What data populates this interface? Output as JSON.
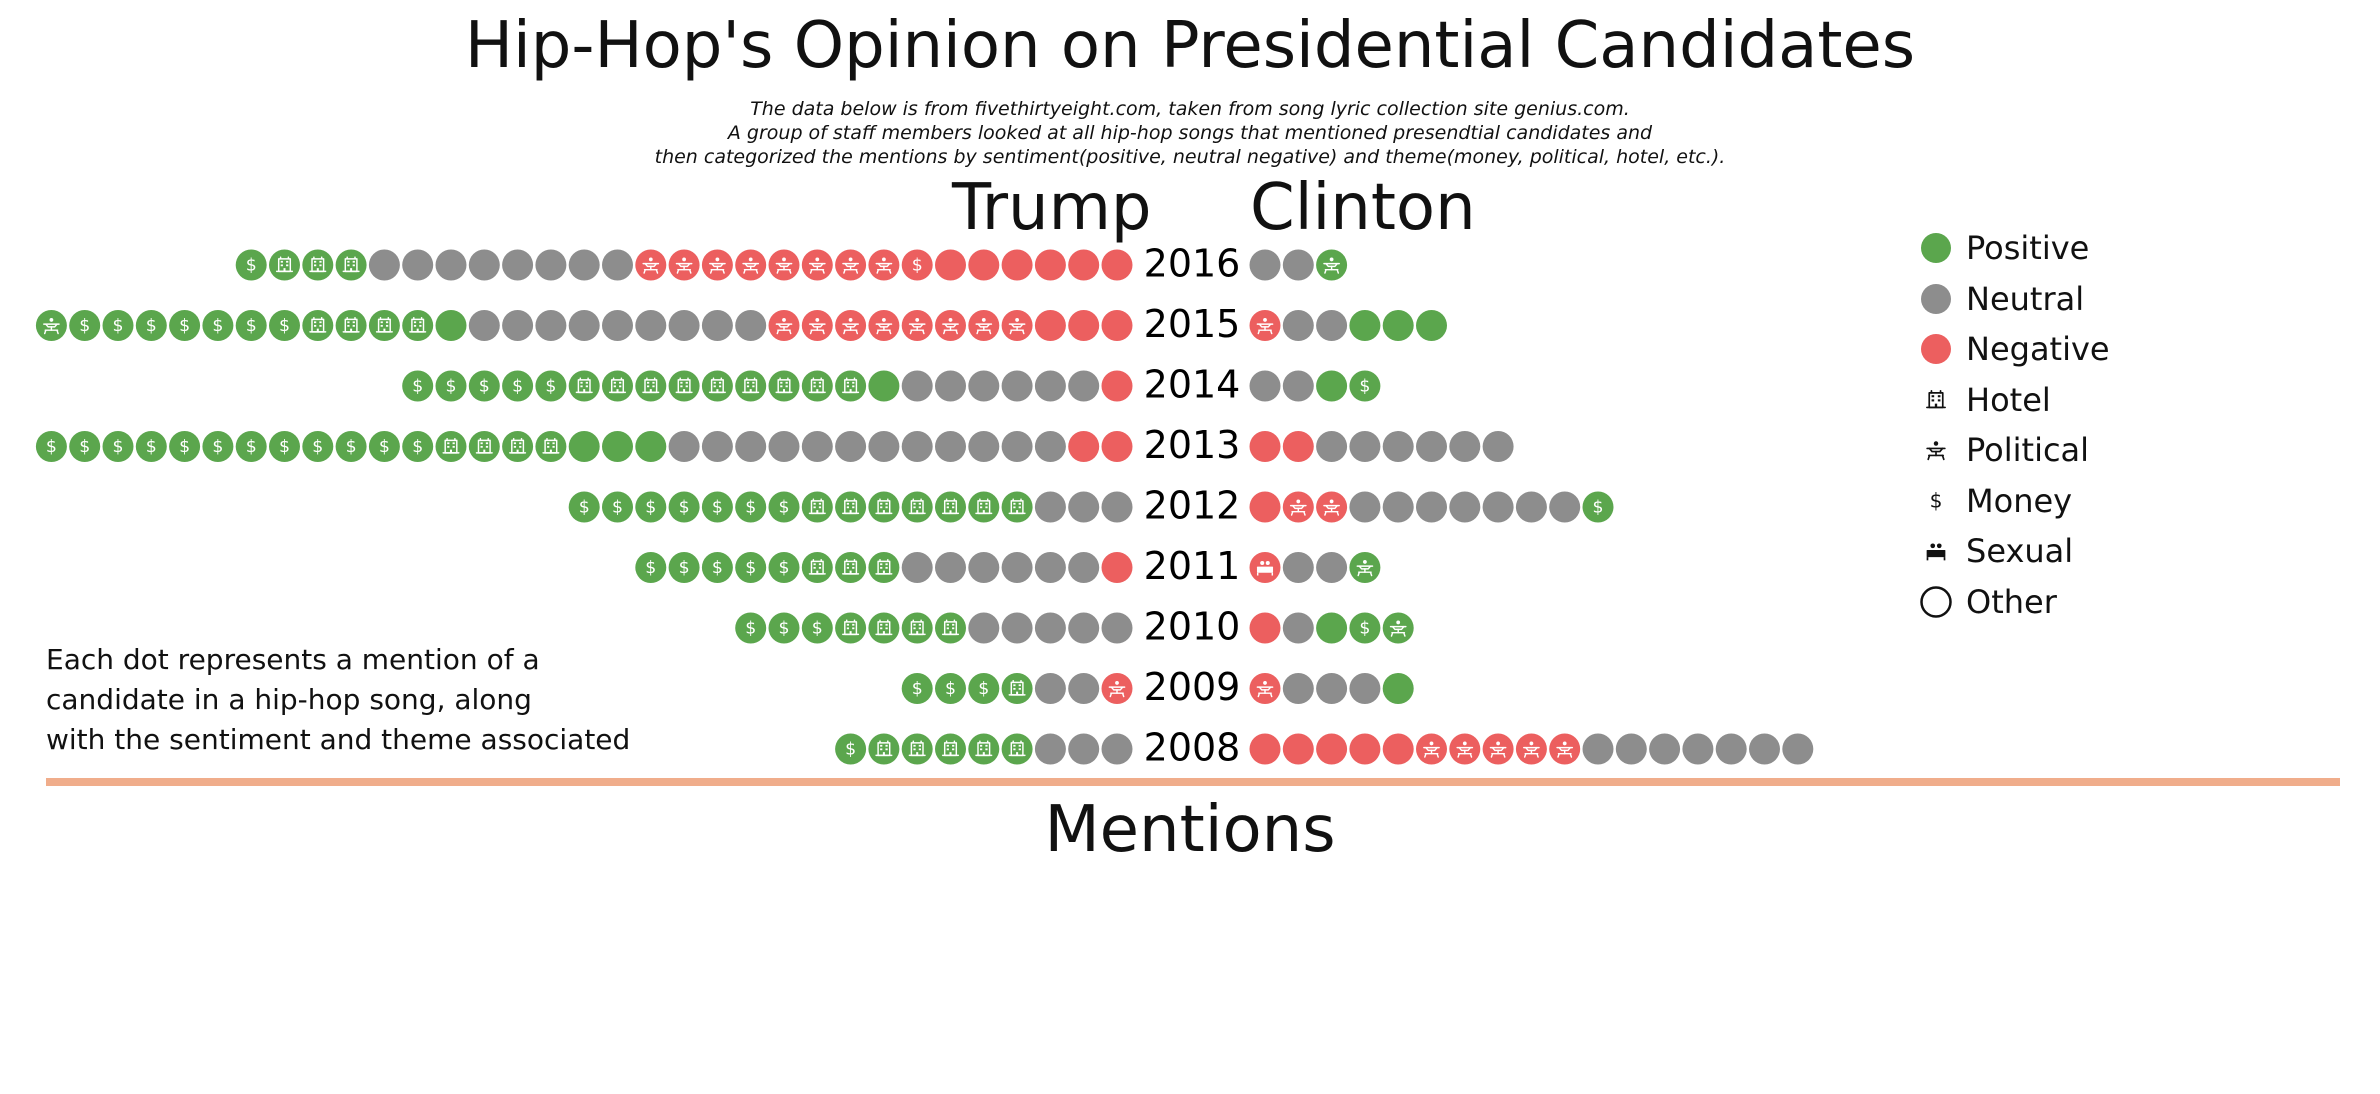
{
  "title": "Hip-Hop's Opinion on Presidential Candidates",
  "subtitle_lines": [
    "The data below is from fivethirtyeight.com, taken from song lyric collection site genius.com.",
    "A group of staff members looked at all hip-hop songs that mentioned presendtial candidates and",
    "then categorized the mentions by sentiment(positive, neutral negative) and theme(money, political, hotel, etc.)."
  ],
  "note_lines": [
    "Each dot represents a mention of a",
    "candidate in a hip-hop song, along",
    "with the sentiment and theme associated"
  ],
  "mentions_title": "Mentions",
  "colors": {
    "positive": "#5ba64d",
    "neutral": "#8d8d8d",
    "negative": "#ec5f5f",
    "divider": "#f0ad8b"
  },
  "legend": [
    {
      "label": "Positive",
      "kind": "sentiment",
      "key": "positive",
      "icon": "dot-positive"
    },
    {
      "label": "Neutral",
      "kind": "sentiment",
      "key": "neutral",
      "icon": "dot-neutral"
    },
    {
      "label": "Negative",
      "kind": "sentiment",
      "key": "negative",
      "icon": "dot-negative"
    },
    {
      "label": "Hotel",
      "kind": "theme",
      "key": "hotel",
      "icon": "hotel-icon"
    },
    {
      "label": "Political",
      "kind": "theme",
      "key": "political",
      "icon": "political-icon"
    },
    {
      "label": "Money",
      "kind": "theme",
      "key": "money",
      "icon": "money-icon"
    },
    {
      "label": "Sexual",
      "kind": "theme",
      "key": "sexual",
      "icon": "sexual-icon"
    },
    {
      "label": "Other",
      "kind": "theme",
      "key": "other",
      "icon": "other-circle"
    }
  ],
  "chart_data": {
    "type": "dot-matrix",
    "candidates": [
      "Trump",
      "Clinton"
    ],
    "years": [
      "2016",
      "2015",
      "2014",
      "2013",
      "2012",
      "2011",
      "2010",
      "2009",
      "2008"
    ],
    "sentiment_codes": {
      "P": "positive",
      "N": "neutral",
      "X": "negative"
    },
    "theme_codes": {
      "m": "money",
      "h": "hotel",
      "p": "political",
      "s": "sexual",
      "o": "other"
    },
    "note": "each token is sentiment+theme code; tokens listed from the center outward",
    "mentions": {
      "Trump": {
        "2016": [
          "Xo",
          "Xo",
          "Xo",
          "Xo",
          "Xo",
          "Xo",
          "Xm",
          "Xp",
          "Xp",
          "Xp",
          "Xp",
          "Xp",
          "Xp",
          "Xp",
          "Xp",
          "No",
          "No",
          "No",
          "No",
          "No",
          "No",
          "No",
          "No",
          "Ph",
          "Ph",
          "Ph",
          "Pm"
        ],
        "2015": [
          "Xo",
          "Xo",
          "Xo",
          "Xp",
          "Xp",
          "Xp",
          "Xp",
          "Xp",
          "Xp",
          "Xp",
          "Xp",
          "No",
          "No",
          "No",
          "No",
          "No",
          "No",
          "No",
          "No",
          "No",
          "Po",
          "Ph",
          "Ph",
          "Ph",
          "Ph",
          "Pm",
          "Pm",
          "Pm",
          "Pm",
          "Pm",
          "Pm",
          "Pm",
          "Pp"
        ],
        "2014": [
          "Xo",
          "No",
          "No",
          "No",
          "No",
          "No",
          "No",
          "Po",
          "Ph",
          "Ph",
          "Ph",
          "Ph",
          "Ph",
          "Ph",
          "Ph",
          "Ph",
          "Ph",
          "Pm",
          "Pm",
          "Pm",
          "Pm",
          "Pm"
        ],
        "2013": [
          "Xo",
          "Xo",
          "No",
          "No",
          "No",
          "No",
          "No",
          "No",
          "No",
          "No",
          "No",
          "No",
          "No",
          "No",
          "Po",
          "Po",
          "Po",
          "Ph",
          "Ph",
          "Ph",
          "Ph",
          "Pm",
          "Pm",
          "Pm",
          "Pm",
          "Pm",
          "Pm",
          "Pm",
          "Pm",
          "Pm",
          "Pm",
          "Pm",
          "Pm"
        ],
        "2012": [
          "No",
          "No",
          "No",
          "Ph",
          "Ph",
          "Ph",
          "Ph",
          "Ph",
          "Ph",
          "Ph",
          "Pm",
          "Pm",
          "Pm",
          "Pm",
          "Pm",
          "Pm",
          "Pm"
        ],
        "2011": [
          "Xo",
          "No",
          "No",
          "No",
          "No",
          "No",
          "No",
          "Ph",
          "Ph",
          "Ph",
          "Pm",
          "Pm",
          "Pm",
          "Pm",
          "Pm"
        ],
        "2010": [
          "No",
          "No",
          "No",
          "No",
          "No",
          "Ph",
          "Ph",
          "Ph",
          "Ph",
          "Pm",
          "Pm",
          "Pm"
        ],
        "2009": [
          "Xp",
          "No",
          "No",
          "Ph",
          "Pm",
          "Pm",
          "Pm"
        ],
        "2008": [
          "No",
          "No",
          "No",
          "Ph",
          "Ph",
          "Ph",
          "Ph",
          "Ph",
          "Pm"
        ]
      },
      "Clinton": {
        "2016": [
          "No",
          "No",
          "Pp"
        ],
        "2015": [
          "Xp",
          "No",
          "No",
          "Po",
          "Po",
          "Po"
        ],
        "2014": [
          "No",
          "No",
          "Po",
          "Pm"
        ],
        "2013": [
          "Xo",
          "Xo",
          "No",
          "No",
          "No",
          "No",
          "No",
          "No"
        ],
        "2012": [
          "Xo",
          "Xp",
          "Xp",
          "No",
          "No",
          "No",
          "No",
          "No",
          "No",
          "No",
          "Pm"
        ],
        "2011": [
          "Xs",
          "No",
          "No",
          "Pp"
        ],
        "2010": [
          "Xo",
          "No",
          "Po",
          "Pm",
          "Pp"
        ],
        "2009": [
          "Xp",
          "No",
          "No",
          "No",
          "Po"
        ],
        "2008": [
          "Xo",
          "Xo",
          "Xo",
          "Xo",
          "Xo",
          "Xp",
          "Xp",
          "Xp",
          "Xp",
          "Xp",
          "No",
          "No",
          "No",
          "No",
          "No",
          "No",
          "No"
        ]
      }
    }
  }
}
